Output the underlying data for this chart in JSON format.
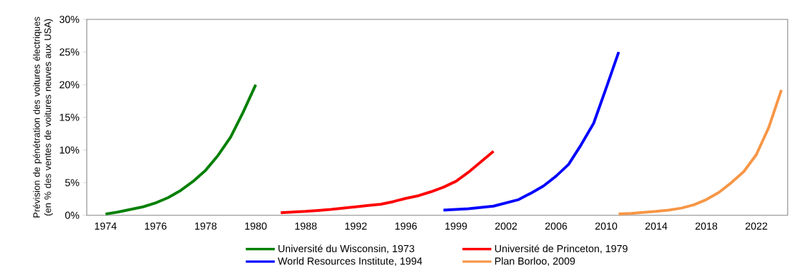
{
  "chart_data": {
    "type": "line",
    "ylabel": "Prévision de pénétration des voitures électriques (en % des ventes de voitures neuves aux USA)",
    "categories": [
      null,
      "1974",
      null,
      null,
      null,
      "1976",
      null,
      null,
      null,
      "1978",
      null,
      null,
      null,
      "1980",
      null,
      null,
      null,
      "1988",
      null,
      null,
      null,
      "1992",
      null,
      null,
      null,
      "1996",
      null,
      null,
      null,
      "1999",
      null,
      null,
      null,
      "2002",
      null,
      null,
      null,
      "2006",
      null,
      null,
      null,
      "2010",
      null,
      null,
      null,
      "2014",
      null,
      null,
      null,
      "2018",
      null,
      null,
      null,
      "2022",
      null,
      null
    ],
    "ylim": [
      0,
      30
    ],
    "yticks": [
      {
        "value": 0,
        "label": "0%"
      },
      {
        "value": 5,
        "label": "5%"
      },
      {
        "value": 10,
        "label": "10%"
      },
      {
        "value": 15,
        "label": "15%"
      },
      {
        "value": 20,
        "label": "20%"
      },
      {
        "value": 25,
        "label": "25%"
      },
      {
        "value": 30,
        "label": "30%"
      }
    ],
    "grid": false,
    "legend": "bottom",
    "line_style": "solid",
    "marker": "none",
    "series": [
      {
        "name": "Université du Wisconsin, 1973",
        "color": "#008000",
        "values": [
          null,
          0.2,
          0.5,
          0.9,
          1.3,
          1.9,
          2.7,
          3.8,
          5.2,
          6.9,
          9.2,
          12,
          15.8,
          20,
          null,
          null,
          null,
          null,
          null,
          null,
          null,
          null,
          null,
          null,
          null,
          null,
          null,
          null,
          null,
          null,
          null,
          null,
          null,
          null,
          null,
          null,
          null,
          null,
          null,
          null,
          null,
          null,
          null,
          null,
          null,
          null,
          null,
          null,
          null,
          null,
          null,
          null,
          null,
          null,
          null,
          null
        ]
      },
      {
        "name": "Université de Princeton, 1979",
        "color": "#ff0000",
        "values": [
          null,
          null,
          null,
          null,
          null,
          null,
          null,
          null,
          null,
          null,
          null,
          null,
          null,
          null,
          null,
          0.4,
          0.5,
          0.6,
          0.75,
          0.9,
          1.1,
          1.3,
          1.5,
          1.7,
          2.1,
          2.6,
          3.0,
          3.6,
          4.3,
          5.2,
          6.6,
          8.2,
          9.8,
          null,
          null,
          null,
          null,
          null,
          null,
          null,
          null,
          null,
          null,
          null,
          null,
          null,
          null,
          null,
          null,
          null,
          null,
          null,
          null,
          null,
          null,
          null
        ]
      },
      {
        "name": "World Resources Institute, 1994",
        "color": "#0000ff",
        "values": [
          null,
          null,
          null,
          null,
          null,
          null,
          null,
          null,
          null,
          null,
          null,
          null,
          null,
          null,
          null,
          null,
          null,
          null,
          null,
          null,
          null,
          null,
          null,
          null,
          null,
          null,
          null,
          null,
          0.8,
          0.9,
          1.0,
          1.2,
          1.4,
          1.9,
          2.4,
          3.4,
          4.5,
          6.0,
          7.8,
          10.8,
          14.1,
          19.5,
          25,
          null,
          null,
          null,
          null,
          null,
          null,
          null,
          null,
          null,
          null,
          null,
          null,
          null
        ]
      },
      {
        "name": "Plan Borloo, 2009",
        "color": "#f79646",
        "values": [
          null,
          null,
          null,
          null,
          null,
          null,
          null,
          null,
          null,
          null,
          null,
          null,
          null,
          null,
          null,
          null,
          null,
          null,
          null,
          null,
          null,
          null,
          null,
          null,
          null,
          null,
          null,
          null,
          null,
          null,
          null,
          null,
          null,
          null,
          null,
          null,
          null,
          null,
          null,
          null,
          null,
          null,
          0.2,
          0.3,
          0.45,
          0.6,
          0.8,
          1.1,
          1.6,
          2.4,
          3.5,
          5.0,
          6.7,
          9.3,
          13.5,
          19.2
        ]
      }
    ]
  }
}
